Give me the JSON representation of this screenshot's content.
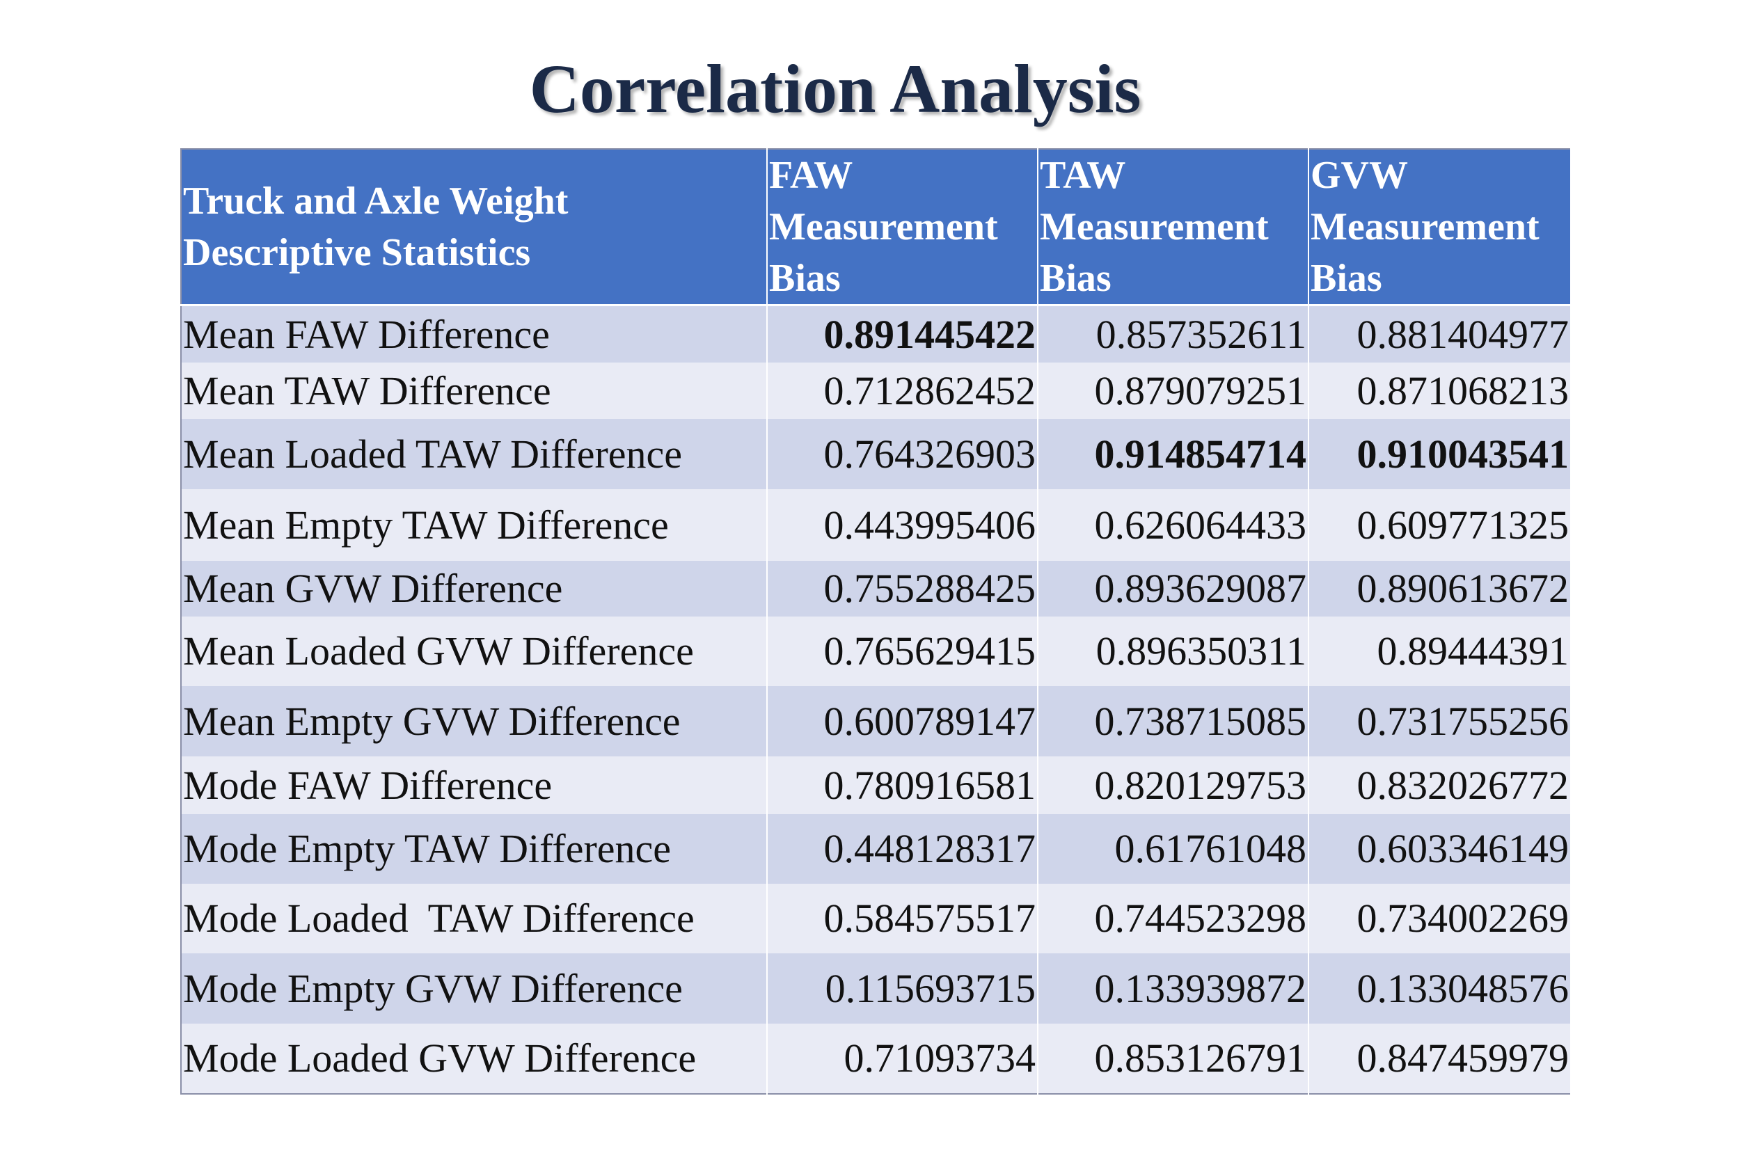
{
  "title": "Correlation Analysis",
  "table": {
    "header": [
      "Truck and Axle Weight Descriptive Statistics",
      "FAW Measurement Bias",
      "TAW Measurement Bias",
      "GVW Measurement Bias"
    ],
    "rows": [
      [
        "Mean FAW Difference",
        "0.891445422",
        "0.857352611",
        "0.881404977"
      ],
      [
        "Mean TAW Difference",
        "0.712862452",
        "0.879079251",
        "0.871068213"
      ],
      [
        "Mean Loaded TAW Difference",
        "0.764326903",
        "0.914854714",
        "0.910043541"
      ],
      [
        "Mean Empty TAW Difference",
        "0.443995406",
        "0.626064433",
        "0.609771325"
      ],
      [
        "Mean GVW Difference",
        "0.755288425",
        "0.893629087",
        "0.890613672"
      ],
      [
        "Mean Loaded GVW Difference",
        "0.765629415",
        "0.896350311",
        "0.89444391"
      ],
      [
        "Mean Empty GVW Difference",
        "0.600789147",
        "0.738715085",
        "0.731755256"
      ],
      [
        "Mode FAW Difference",
        "0.780916581",
        "0.820129753",
        "0.832026772"
      ],
      [
        "Mode Empty TAW Difference",
        "0.448128317",
        "0.61761048",
        "0.603346149"
      ],
      [
        "Mode Loaded  TAW Difference",
        "0.584575517",
        "0.744523298",
        "0.734002269"
      ],
      [
        "Mode Empty GVW Difference",
        "0.115693715",
        "0.133939872",
        "0.133048576"
      ],
      [
        "Mode Loaded GVW Difference",
        "0.71093734",
        "0.853126791",
        "0.847459979"
      ]
    ],
    "bold_cells": [
      [
        0,
        1
      ],
      [
        2,
        2
      ],
      [
        2,
        3
      ]
    ]
  }
}
